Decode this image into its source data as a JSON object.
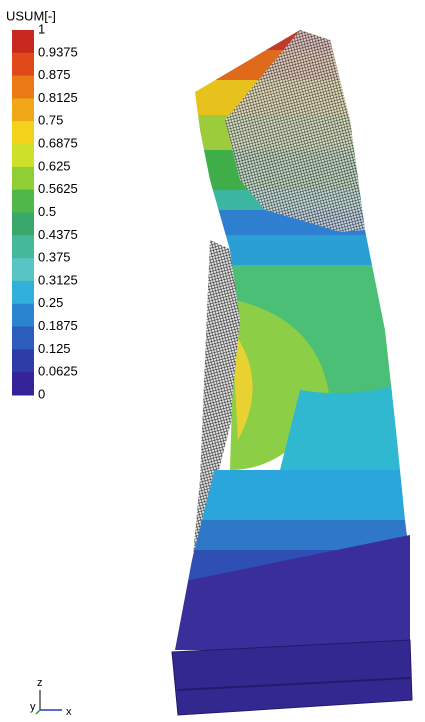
{
  "legend": {
    "title": "USUM[-]",
    "labels": [
      "1",
      "0.9375",
      "0.875",
      "0.8125",
      "0.75",
      "0.6875",
      "0.625",
      "0.5625",
      "0.5",
      "0.4375",
      "0.375",
      "0.3125",
      "0.25",
      "0.1875",
      "0.125",
      "0.0625",
      "0"
    ]
  },
  "axes": {
    "z": "z",
    "y": "y",
    "x": "x"
  }
}
